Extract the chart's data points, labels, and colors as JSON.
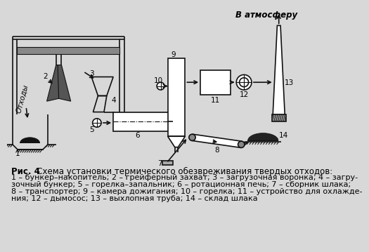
{
  "title_bold": "Рис. 4",
  "title_rest": "   Схема установки термического обезвреживания твердых отходов:",
  "caption_lines": [
    "1 – бункер–накопитель; 2 – грейферный захват; 3 – загрузочная воронка; 4 – загру-",
    "зочный бункер; 5 – горелка–запальник; 6 – ротационная печь; 7 – сборник шлака;",
    "8 – транспортер; 9 – камера дожигания; 10 – горелка; 11 – устройство для охлажде-",
    "ния; 12 – дымосос; 13 – выхлопная труба; 14 – склад шлака"
  ],
  "label_atmosphere": "В атмосферу",
  "label_waste": "Отходы",
  "bg_color": "#d8d8d8",
  "line_color": "#111111",
  "font_size_caption": 8.0,
  "font_size_label": 7.5,
  "font_size_number": 7.5
}
